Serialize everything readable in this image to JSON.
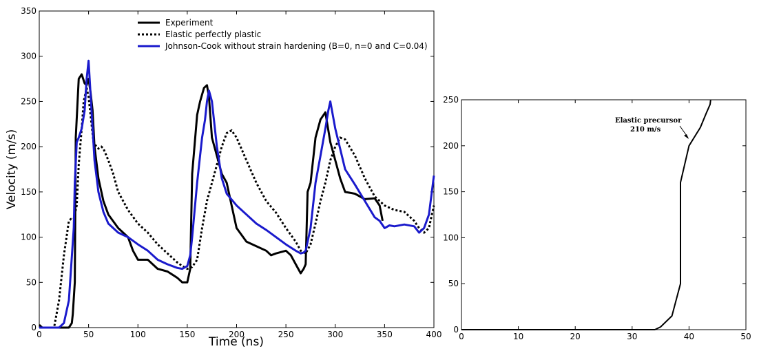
{
  "chart_data": [
    {
      "type": "line",
      "title": "",
      "xlabel": "Time (ns)",
      "ylabel": "Velocity (m/s)",
      "xlim": [
        0,
        400
      ],
      "ylim": [
        0,
        350
      ],
      "xticks": [
        "0",
        "50",
        "100",
        "150",
        "200",
        "250",
        "300",
        "350",
        "400"
      ],
      "yticks": [
        "0",
        "50",
        "100",
        "150",
        "200",
        "250",
        "300",
        "350"
      ],
      "grid": false,
      "legend": "top-center",
      "series": [
        {
          "name": "Experiment",
          "color": "#000000",
          "style": "solid",
          "x": [
            0,
            3,
            30,
            33,
            34,
            36,
            37,
            40,
            43,
            46,
            48,
            50,
            52,
            54,
            56,
            60,
            65,
            70,
            80,
            90,
            95,
            100,
            110,
            120,
            130,
            140,
            145,
            148,
            150,
            153,
            155,
            160,
            163,
            167,
            170,
            172,
            175,
            180,
            185,
            190,
            195,
            200,
            210,
            220,
            230,
            235,
            240,
            250,
            255,
            260,
            265,
            268,
            270,
            272,
            275,
            280,
            285,
            290,
            295,
            300,
            305,
            310,
            320,
            330,
            340,
            345,
            348
          ],
          "y": [
            3,
            0,
            0,
            5,
            15,
            50,
            210,
            275,
            280,
            270,
            268,
            275,
            260,
            240,
            200,
            165,
            140,
            125,
            110,
            100,
            85,
            75,
            75,
            65,
            62,
            55,
            50,
            50,
            50,
            65,
            170,
            235,
            250,
            265,
            268,
            255,
            210,
            190,
            170,
            160,
            135,
            110,
            95,
            90,
            85,
            80,
            82,
            85,
            80,
            70,
            60,
            65,
            70,
            150,
            160,
            210,
            230,
            238,
            205,
            185,
            165,
            150,
            148,
            142,
            143,
            135,
            118
          ]
        },
        {
          "name": "Elastic perfectly plastic",
          "color": "#000000",
          "style": "dotted",
          "x": [
            0,
            15,
            20,
            25,
            30,
            32,
            35,
            38,
            40,
            43,
            45,
            48,
            50,
            53,
            55,
            58,
            60,
            63,
            65,
            70,
            75,
            80,
            90,
            100,
            110,
            120,
            130,
            140,
            145,
            150,
            155,
            160,
            165,
            170,
            175,
            180,
            185,
            190,
            195,
            200,
            210,
            220,
            230,
            240,
            250,
            260,
            265,
            270,
            275,
            280,
            285,
            290,
            295,
            300,
            305,
            310,
            320,
            330,
            340,
            350,
            360,
            370,
            380,
            385,
            390,
            395,
            400
          ],
          "y": [
            0,
            0,
            30,
            80,
            118,
            120,
            120,
            135,
            180,
            220,
            250,
            265,
            255,
            225,
            205,
            200,
            198,
            200,
            198,
            185,
            170,
            150,
            130,
            115,
            105,
            92,
            82,
            72,
            68,
            65,
            67,
            75,
            110,
            140,
            160,
            180,
            200,
            215,
            218,
            210,
            185,
            160,
            140,
            127,
            110,
            95,
            85,
            82,
            92,
            115,
            140,
            160,
            185,
            200,
            210,
            208,
            190,
            165,
            145,
            135,
            130,
            128,
            118,
            110,
            105,
            110,
            135
          ]
        },
        {
          "name": "Johnson-Cook without strain hardening (B=0, n=0 and C=0.04)",
          "color": "#1a1acc",
          "style": "solid",
          "x": [
            0,
            15,
            20,
            25,
            30,
            35,
            36,
            38,
            40,
            43,
            46,
            48,
            50,
            53,
            56,
            60,
            65,
            70,
            80,
            90,
            100,
            110,
            120,
            130,
            140,
            145,
            150,
            153,
            155,
            160,
            163,
            165,
            168,
            170,
            172,
            175,
            180,
            185,
            190,
            200,
            210,
            220,
            230,
            240,
            250,
            260,
            265,
            268,
            270,
            275,
            280,
            285,
            290,
            293,
            295,
            300,
            310,
            320,
            330,
            340,
            345,
            350,
            355,
            360,
            370,
            380,
            385,
            390,
            395,
            400
          ],
          "y": [
            0,
            0,
            0,
            5,
            30,
            110,
            160,
            205,
            210,
            220,
            240,
            275,
            295,
            240,
            185,
            150,
            128,
            115,
            105,
            100,
            92,
            85,
            75,
            70,
            66,
            65,
            68,
            80,
            100,
            160,
            190,
            210,
            230,
            250,
            262,
            250,
            200,
            165,
            148,
            135,
            125,
            115,
            108,
            100,
            92,
            85,
            82,
            83,
            85,
            110,
            160,
            190,
            220,
            240,
            250,
            220,
            175,
            158,
            140,
            122,
            118,
            110,
            113,
            112,
            114,
            112,
            105,
            110,
            125,
            168
          ]
        }
      ]
    },
    {
      "type": "line",
      "title": "",
      "xlabel": "",
      "ylabel": "",
      "xlim": [
        0,
        50
      ],
      "ylim": [
        0,
        250
      ],
      "xticks": [
        "0",
        "10",
        "20",
        "30",
        "40",
        "50"
      ],
      "yticks": [
        "0",
        "50",
        "100",
        "150",
        "200",
        "250"
      ],
      "grid": false,
      "series": [
        {
          "color": "#000000",
          "style": "solid",
          "x": [
            0,
            33,
            34,
            35,
            37,
            38.5,
            38.5,
            38.5,
            40,
            40,
            41,
            42,
            43,
            43.7,
            43.8
          ],
          "y": [
            0,
            0,
            0,
            3,
            15,
            50,
            100,
            160,
            200,
            200,
            210,
            220,
            235,
            245,
            250
          ]
        }
      ],
      "annotations": [
        {
          "text": "Elastic precursor",
          "x": 32,
          "y": 228
        },
        {
          "text": "210 m/s",
          "x": 33,
          "y": 217
        }
      ]
    }
  ]
}
